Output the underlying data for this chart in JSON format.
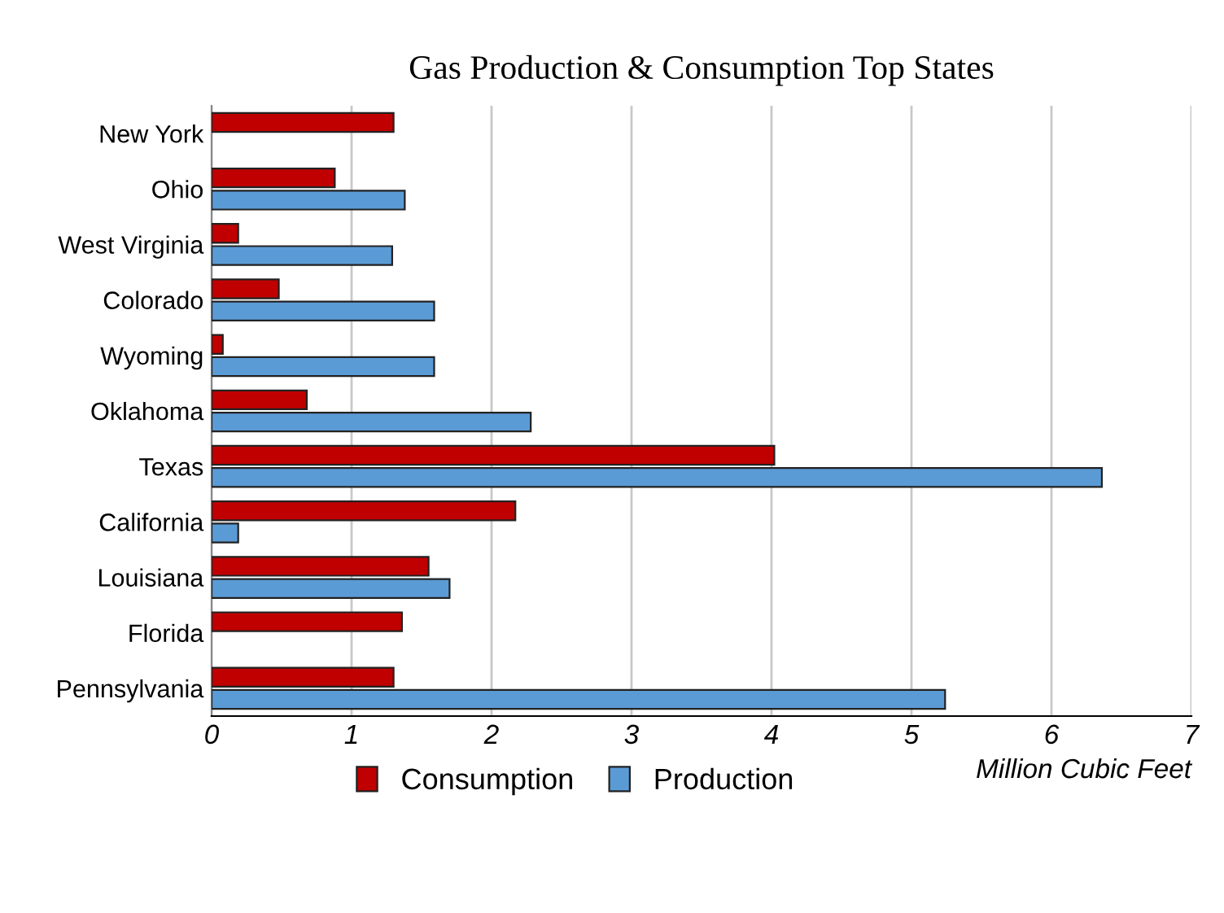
{
  "chart_data": {
    "type": "bar",
    "orientation": "horizontal",
    "title": "Gas Production & Consumption Top States",
    "xlabel": "Million Cubic Feet",
    "categories": [
      "New York",
      "Ohio",
      "West Virginia",
      "Colorado",
      "Wyoming",
      "Oklahoma",
      "Texas",
      "California",
      "Louisiana",
      "Florida",
      "Pennsylvania"
    ],
    "series": [
      {
        "name": "Consumption",
        "color": "#c00000",
        "values": [
          1.3,
          0.88,
          0.19,
          0.48,
          0.08,
          0.68,
          4.02,
          2.17,
          1.55,
          1.36,
          1.3
        ]
      },
      {
        "name": "Production",
        "color": "#5b9bd5",
        "values": [
          null,
          1.38,
          1.29,
          1.59,
          1.59,
          2.28,
          6.36,
          0.19,
          1.7,
          null,
          5.24
        ]
      }
    ],
    "xlim": [
      0,
      7
    ],
    "xticks": [
      0,
      1,
      2,
      3,
      4,
      5,
      6,
      7
    ],
    "grid": "x",
    "legend": "bottom"
  }
}
